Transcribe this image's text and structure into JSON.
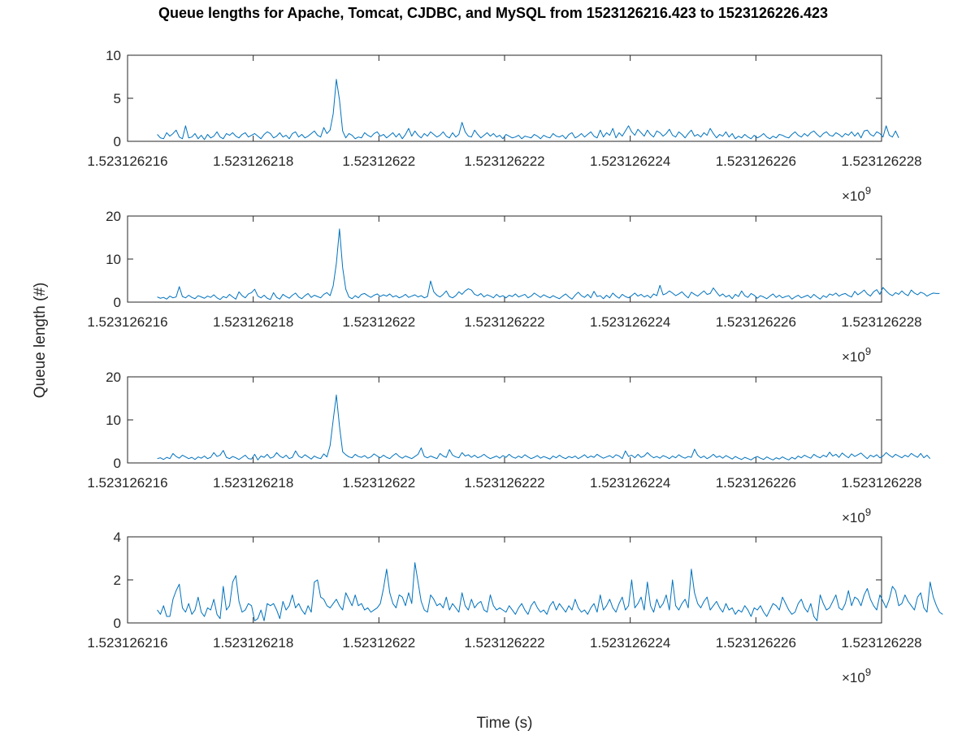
{
  "chart_data": {
    "type": "line",
    "title": "Queue lengths for Apache, Tomcat, CJDBC, and MySQL from 1523126216.423 to 1523126226.423",
    "xlabel": "Time (s)",
    "ylabel": "Queue length (#)",
    "x_exponent_label": "×10",
    "x_exponent_power": "9",
    "x_range": [
      1523126216,
      1523126228
    ],
    "x_ticks": [
      1523126216,
      1523126218,
      1523126220,
      1523126222,
      1523126224,
      1523126226,
      1523126228
    ],
    "x_tick_labels": [
      "1.523126216",
      "1.523126218",
      "1.52312622",
      "1.523126222",
      "1.523126224",
      "1.523126226",
      "1.523126228"
    ],
    "x_start": 1523126216.473,
    "x_step": 0.05,
    "grid": false,
    "line_color": "#0072BD",
    "panels": [
      {
        "name": "Apache",
        "ylim": [
          0,
          10
        ],
        "y_ticks": [
          0,
          5,
          10
        ],
        "y_tick_labels": [
          "0",
          "5",
          "10"
        ],
        "values": [
          0.8,
          0.4,
          0.3,
          1.0,
          0.6,
          0.9,
          1.3,
          0.5,
          0.3,
          1.8,
          0.4,
          0.5,
          0.9,
          0.3,
          0.7,
          0.2,
          0.8,
          0.4,
          0.6,
          1.1,
          0.5,
          0.3,
          0.9,
          0.7,
          1.0,
          0.6,
          0.4,
          0.8,
          1.0,
          0.5,
          0.7,
          0.9,
          0.6,
          0.3,
          0.8,
          1.1,
          0.9,
          0.4,
          0.6,
          1.0,
          0.5,
          0.7,
          0.3,
          0.9,
          1.1,
          0.5,
          0.8,
          0.4,
          0.6,
          0.9,
          1.2,
          0.7,
          0.5,
          1.6,
          0.9,
          1.3,
          3.2,
          7.2,
          4.8,
          1.2,
          0.4,
          0.9,
          0.7,
          0.3,
          0.5,
          0.4,
          1.0,
          0.7,
          0.5,
          0.9,
          1.1,
          0.6,
          0.8,
          0.4,
          0.7,
          1.0,
          0.5,
          0.9,
          0.3,
          0.8,
          1.5,
          0.6,
          1.2,
          0.7,
          0.4,
          0.9,
          0.6,
          1.1,
          0.8,
          0.5,
          0.7,
          1.1,
          0.6,
          0.4,
          1.0,
          0.5,
          0.8,
          2.2,
          1.1,
          0.6,
          0.5,
          1.3,
          0.8,
          0.4,
          0.7,
          1.0,
          0.6,
          0.9,
          0.5,
          0.7,
          0.3,
          0.8,
          0.6,
          0.4,
          0.5,
          0.7,
          0.3,
          0.6,
          0.5,
          0.4,
          0.8,
          0.6,
          0.3,
          0.7,
          0.5,
          0.4,
          0.9,
          0.6,
          0.5,
          0.7,
          0.3,
          0.8,
          1.0,
          0.4,
          0.6,
          0.9,
          0.5,
          0.8,
          1.1,
          0.6,
          0.4,
          1.3,
          0.5,
          1.0,
          0.7,
          1.5,
          0.4,
          1.0,
          0.6,
          1.2,
          1.8,
          1.1,
          0.7,
          1.4,
          1.0,
          0.6,
          1.3,
          0.8,
          0.5,
          1.2,
          1.0,
          0.6,
          0.9,
          1.4,
          0.7,
          0.5,
          1.1,
          0.8,
          0.4,
          0.9,
          1.3,
          0.6,
          0.8,
          0.5,
          1.0,
          0.7,
          1.5,
          0.9,
          0.4,
          0.8,
          0.6,
          1.1,
          0.5,
          0.9,
          0.3,
          0.6,
          0.4,
          0.8,
          0.5,
          0.3,
          0.7,
          0.4,
          0.6,
          0.9,
          0.5,
          0.3,
          0.6,
          0.4,
          0.8,
          0.7,
          0.5,
          0.4,
          0.8,
          1.1,
          0.7,
          0.5,
          0.9,
          0.6,
          1.0,
          1.2,
          0.8,
          0.5,
          0.9,
          1.1,
          0.7,
          0.6,
          1.0,
          0.8,
          0.5,
          0.9,
          0.7,
          1.1,
          0.6,
          1.0,
          0.4,
          1.2,
          1.3,
          0.8,
          0.6,
          1.1,
          0.9,
          0.5,
          1.8,
          0.7,
          0.5,
          1.2,
          0.4
        ]
      },
      {
        "name": "Tomcat",
        "ylim": [
          0,
          20
        ],
        "y_ticks": [
          0,
          10,
          20
        ],
        "y_tick_labels": [
          "0",
          "10",
          "20"
        ],
        "values": [
          1.2,
          0.9,
          1.1,
          0.7,
          1.4,
          1.0,
          1.2,
          3.6,
          1.3,
          1.0,
          1.6,
          1.1,
          0.8,
          1.5,
          1.2,
          0.9,
          1.4,
          1.1,
          1.7,
          1.0,
          0.6,
          1.3,
          1.0,
          1.8,
          1.2,
          0.7,
          2.4,
          1.5,
          1.0,
          1.9,
          2.2,
          3.0,
          1.4,
          1.0,
          1.6,
          0.9,
          0.6,
          2.2,
          1.1,
          0.7,
          1.8,
          1.3,
          0.9,
          1.6,
          2.1,
          1.2,
          0.8,
          1.5,
          2.0,
          1.1,
          1.6,
          1.3,
          1.0,
          1.8,
          2.2,
          1.5,
          3.8,
          9.0,
          17.0,
          8.0,
          3.0,
          1.2,
          0.8,
          1.5,
          1.0,
          1.8,
          2.0,
          1.5,
          1.1,
          1.6,
          1.9,
          1.3,
          1.7,
          1.4,
          1.9,
          1.2,
          1.5,
          1.0,
          1.3,
          1.8,
          1.1,
          1.4,
          1.7,
          1.2,
          1.5,
          1.0,
          1.3,
          4.9,
          2.4,
          1.6,
          1.2,
          1.8,
          2.6,
          1.3,
          1.0,
          1.5,
          2.4,
          1.8,
          2.6,
          3.1,
          2.8,
          1.8,
          1.5,
          2.0,
          1.2,
          1.7,
          1.4,
          1.0,
          1.8,
          1.2,
          1.5,
          1.0,
          1.6,
          1.3,
          1.9,
          1.2,
          1.5,
          1.8,
          1.0,
          1.4,
          2.1,
          1.6,
          1.1,
          1.7,
          1.3,
          1.0,
          1.5,
          1.1,
          0.8,
          1.4,
          1.9,
          1.2,
          0.7,
          1.6,
          2.3,
          1.5,
          1.1,
          1.8,
          1.0,
          2.5,
          1.3,
          1.5,
          0.8,
          1.6,
          1.0,
          2.1,
          1.4,
          0.9,
          1.8,
          1.3,
          1.0,
          1.5,
          2.1,
          1.4,
          1.8,
          1.2,
          1.6,
          1.0,
          1.9,
          1.5,
          3.9,
          1.7,
          2.0,
          2.6,
          2.1,
          1.5,
          1.9,
          2.4,
          1.6,
          1.0,
          2.3,
          1.8,
          1.4,
          2.0,
          2.6,
          1.8,
          2.0,
          3.3,
          2.3,
          1.4,
          1.9,
          1.2,
          1.6,
          0.8,
          1.8,
          1.3,
          2.6,
          1.5,
          1.1,
          2.0,
          1.6,
          0.9,
          1.5,
          1.2,
          0.8,
          1.4,
          1.9,
          1.1,
          1.6,
          1.0,
          1.3,
          1.5,
          0.7,
          1.2,
          1.6,
          1.0,
          1.3,
          1.6,
          1.0,
          1.8,
          1.2,
          0.7,
          1.5,
          1.1,
          1.9,
          1.6,
          2.1,
          1.4,
          1.8,
          2.0,
          1.5,
          1.2,
          2.5,
          1.7,
          2.2,
          2.8,
          1.9,
          1.4,
          2.4,
          2.9,
          1.8,
          3.4,
          2.6,
          1.9,
          1.5,
          2.2,
          1.8,
          2.6,
          1.9,
          1.5,
          2.8,
          2.1,
          1.7,
          2.3,
          2.0,
          1.4,
          1.8,
          2.1,
          2.0,
          2.0
        ]
      },
      {
        "name": "CJDBC",
        "ylim": [
          0,
          20
        ],
        "y_ticks": [
          0,
          10,
          20
        ],
        "y_tick_labels": [
          "0",
          "10",
          "20"
        ],
        "values": [
          1.0,
          1.2,
          0.8,
          1.3,
          1.0,
          2.2,
          1.5,
          1.1,
          1.8,
          1.4,
          1.0,
          1.3,
          0.8,
          1.4,
          1.1,
          1.6,
          1.0,
          1.3,
          2.4,
          1.5,
          1.8,
          2.9,
          1.3,
          1.0,
          1.5,
          1.2,
          0.8,
          1.3,
          1.8,
          1.0,
          0.9,
          2.0,
          0.7,
          1.6,
          1.3,
          2.0,
          1.1,
          1.4,
          2.4,
          1.6,
          1.2,
          1.8,
          1.0,
          1.3,
          2.8,
          1.6,
          1.2,
          1.9,
          1.4,
          0.9,
          1.6,
          1.2,
          1.0,
          2.1,
          1.4,
          4.0,
          10.0,
          15.8,
          8.5,
          2.6,
          1.9,
          1.4,
          1.2,
          2.0,
          1.5,
          1.3,
          1.7,
          1.1,
          1.4,
          2.1,
          1.6,
          1.2,
          1.8,
          1.3,
          1.0,
          1.7,
          2.2,
          1.5,
          1.1,
          1.6,
          1.3,
          1.0,
          1.5,
          2.0,
          3.5,
          1.5,
          1.2,
          1.6,
          1.3,
          1.0,
          2.2,
          1.6,
          1.3,
          3.1,
          1.8,
          1.4,
          1.2,
          2.4,
          1.6,
          1.9,
          1.3,
          1.8,
          1.2,
          1.5,
          2.0,
          1.4,
          1.0,
          1.3,
          1.6,
          1.1,
          1.7,
          1.3,
          2.0,
          1.4,
          1.1,
          1.6,
          1.2,
          1.9,
          1.4,
          1.0,
          1.3,
          1.7,
          1.1,
          1.5,
          1.2,
          0.9,
          1.6,
          1.2,
          1.8,
          1.3,
          1.0,
          1.5,
          1.2,
          1.6,
          1.0,
          1.4,
          1.9,
          1.2,
          1.6,
          1.3,
          2.0,
          1.5,
          1.1,
          1.4,
          1.7,
          1.2,
          1.9,
          1.6,
          1.0,
          2.8,
          1.5,
          1.8,
          1.2,
          2.0,
          1.3,
          1.6,
          2.4,
          1.7,
          1.2,
          1.5,
          1.1,
          1.7,
          1.4,
          1.0,
          1.6,
          1.2,
          1.9,
          1.4,
          1.1,
          1.5,
          1.3,
          3.2,
          1.8,
          1.2,
          1.6,
          1.0,
          1.4,
          2.0,
          1.3,
          1.6,
          1.1,
          1.7,
          1.3,
          0.9,
          1.5,
          1.1,
          0.8,
          1.3,
          1.0,
          0.7,
          1.2,
          1.5,
          1.1,
          0.8,
          1.4,
          1.0,
          0.7,
          1.2,
          0.9,
          1.4,
          1.0,
          0.7,
          1.3,
          0.9,
          1.6,
          1.2,
          1.8,
          1.4,
          1.1,
          2.0,
          1.5,
          1.2,
          1.8,
          1.4,
          2.5,
          1.6,
          2.0,
          1.3,
          2.3,
          1.7,
          1.2,
          2.1,
          1.5,
          1.9,
          2.3,
          1.6,
          1.0,
          1.8,
          1.4,
          1.9,
          1.2,
          1.6,
          2.4,
          1.8,
          1.3,
          2.0,
          1.6,
          1.2,
          1.8,
          1.4,
          2.2,
          1.7,
          1.3,
          2.2,
          1.2,
          1.8,
          1.0
        ]
      },
      {
        "name": "MySQL",
        "ylim": [
          0,
          4
        ],
        "y_ticks": [
          0,
          2,
          4
        ],
        "y_tick_labels": [
          "0",
          "2",
          "4"
        ],
        "values": [
          0.6,
          0.4,
          0.8,
          0.3,
          0.3,
          1.1,
          1.5,
          1.8,
          0.7,
          0.5,
          0.9,
          0.4,
          0.6,
          1.2,
          0.5,
          0.3,
          0.7,
          0.6,
          1.1,
          0.4,
          0.2,
          1.7,
          0.6,
          0.8,
          1.9,
          2.2,
          1.0,
          0.5,
          0.6,
          0.9,
          0.8,
          0.1,
          0.2,
          0.6,
          0.1,
          0.9,
          0.8,
          0.9,
          0.6,
          0.2,
          1.0,
          0.6,
          0.8,
          1.3,
          0.7,
          0.9,
          0.6,
          0.4,
          0.8,
          0.5,
          1.9,
          2.0,
          1.2,
          1.1,
          0.8,
          0.7,
          0.9,
          1.1,
          0.8,
          0.6,
          1.4,
          1.1,
          0.8,
          1.3,
          0.8,
          0.9,
          0.6,
          0.7,
          0.5,
          0.6,
          0.7,
          0.9,
          1.6,
          2.5,
          1.4,
          0.9,
          0.7,
          1.3,
          1.2,
          0.8,
          1.4,
          0.9,
          2.8,
          1.9,
          1.0,
          0.6,
          0.5,
          1.3,
          1.1,
          0.8,
          0.9,
          0.7,
          1.2,
          0.6,
          0.9,
          0.7,
          0.5,
          1.4,
          0.8,
          0.6,
          1.1,
          0.7,
          0.9,
          1.0,
          0.6,
          0.5,
          1.3,
          0.8,
          0.6,
          0.7,
          0.6,
          0.5,
          0.8,
          0.6,
          0.4,
          0.7,
          0.9,
          0.6,
          0.4,
          0.8,
          1.0,
          0.7,
          0.5,
          0.6,
          0.4,
          0.8,
          1.0,
          0.6,
          0.9,
          0.7,
          0.5,
          0.8,
          0.6,
          1.1,
          0.7,
          0.5,
          0.6,
          0.4,
          0.7,
          0.9,
          0.5,
          1.3,
          0.6,
          0.8,
          1.1,
          0.7,
          0.5,
          0.9,
          1.2,
          0.6,
          0.8,
          2.0,
          0.7,
          0.9,
          1.2,
          0.6,
          1.9,
          0.8,
          0.5,
          1.1,
          0.7,
          0.9,
          1.3,
          0.6,
          2.0,
          0.8,
          0.6,
          0.9,
          1.1,
          0.7,
          2.5,
          1.4,
          0.9,
          0.7,
          1.0,
          1.2,
          0.6,
          0.8,
          1.0,
          0.7,
          0.5,
          0.9,
          0.6,
          0.7,
          0.4,
          0.6,
          0.5,
          0.8,
          0.6,
          0.3,
          0.7,
          0.6,
          0.8,
          0.5,
          0.3,
          0.6,
          0.9,
          0.8,
          0.6,
          1.2,
          0.9,
          0.6,
          0.4,
          0.5,
          0.9,
          1.1,
          0.7,
          0.5,
          0.9,
          0.3,
          0.1,
          1.3,
          0.9,
          0.6,
          0.7,
          1.0,
          1.3,
          0.7,
          0.6,
          0.9,
          1.5,
          0.8,
          1.2,
          1.1,
          0.8,
          1.3,
          1.6,
          1.1,
          0.8,
          0.6,
          1.3,
          1.0,
          0.7,
          1.1,
          1.7,
          1.5,
          0.8,
          0.9,
          1.3,
          1.0,
          0.8,
          0.6,
          1.2,
          1.4,
          0.7,
          0.5,
          1.9,
          1.2,
          0.8,
          0.5,
          0.4
        ]
      }
    ]
  }
}
